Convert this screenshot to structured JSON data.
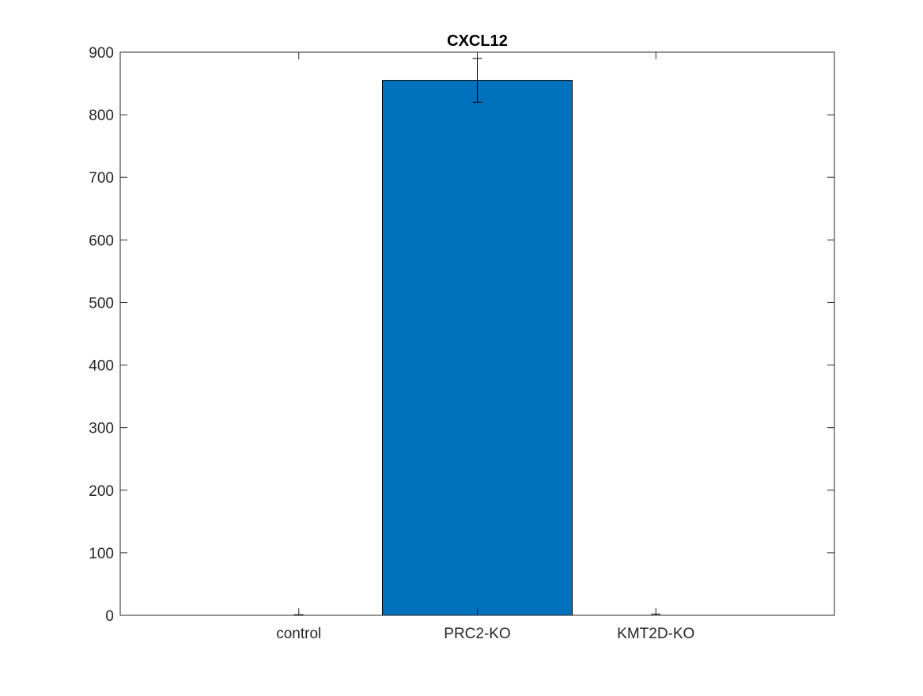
{
  "chart_data": {
    "type": "bar",
    "title": "CXCL12",
    "xlabel": "",
    "ylabel": "",
    "categories": [
      "control",
      "PRC2-KO",
      "KMT2D-KO"
    ],
    "series": [
      {
        "values": [
          0,
          855,
          0
        ],
        "error": [
          1,
          35,
          2
        ],
        "color": "#0072BD"
      }
    ],
    "ylim": [
      0,
      900
    ],
    "yticks": [
      0,
      100,
      200,
      300,
      400,
      500,
      600,
      700,
      800,
      900
    ],
    "yticks_labels": [
      "0",
      "100",
      "200",
      "300",
      "400",
      "500",
      "600",
      "700",
      "800",
      "900"
    ],
    "grid": false,
    "box": true
  }
}
